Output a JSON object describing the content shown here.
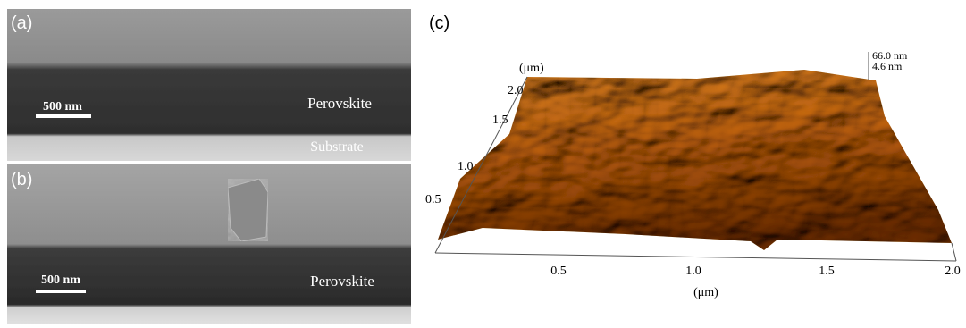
{
  "panels": [
    {
      "label": "(a)",
      "scale_bar": "500 nm",
      "layers": [
        "Perovskite",
        "Substrate"
      ]
    },
    {
      "label": "(b)",
      "scale_bar": "500 nm",
      "layers": [
        "Perovskite"
      ]
    },
    {
      "label": "(c)",
      "y_axis_label": "(μm)",
      "y_ticks": [
        "2.0",
        "1.5",
        "1.0",
        "0.5"
      ],
      "x_ticks": [
        "0.5",
        "1.0",
        "1.5",
        "2.0"
      ],
      "x_axis_label": "(μm)",
      "z_labels": [
        "66.0 nm",
        "4.6 nm"
      ]
    }
  ]
}
